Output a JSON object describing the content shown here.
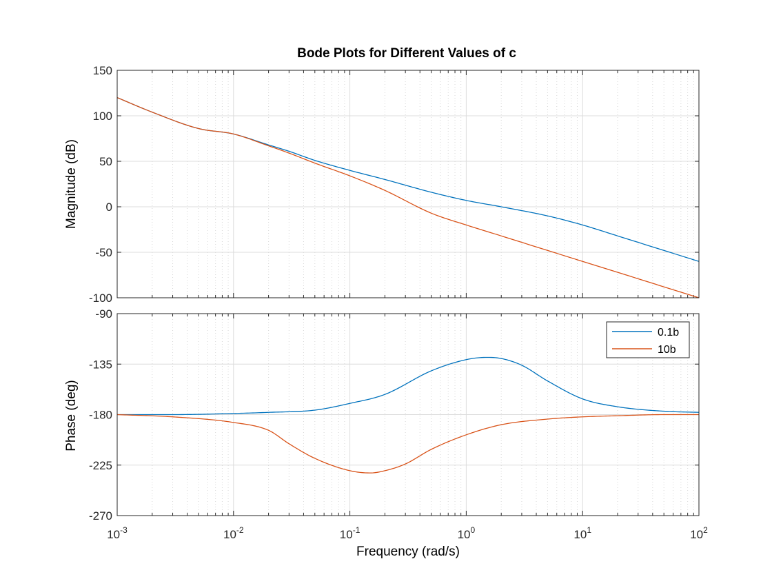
{
  "chart_data": {
    "type": "line",
    "title": "Bode Plots for Different Values of c",
    "xlabel": "Frequency  (rad/s)",
    "xscale": "log",
    "xlim": [
      0.001,
      100
    ],
    "x_tick_labels": [
      {
        "base": "10",
        "exp": "-3"
      },
      {
        "base": "10",
        "exp": "-2"
      },
      {
        "base": "10",
        "exp": "-1"
      },
      {
        "base": "10",
        "exp": "0"
      },
      {
        "base": "10",
        "exp": "1"
      },
      {
        "base": "10",
        "exp": "2"
      }
    ],
    "grid": true,
    "colors": {
      "0.1b": "#0072bd",
      "10b": "#d95319"
    },
    "panels": [
      {
        "ylabel": "Magnitude (dB)",
        "ylim": [
          -100,
          150
        ],
        "yticks": [
          "-100",
          "-50",
          "0",
          "50",
          "100",
          "150"
        ],
        "series": [
          {
            "name": "0.1b",
            "x": [
              0.001,
              0.002,
              0.005,
              0.01,
              0.02,
              0.03,
              0.05,
              0.1,
              0.2,
              0.5,
              1,
              2,
              5,
              10,
              20,
              50,
              100
            ],
            "y": [
              120,
              104,
              86,
              80,
              68,
              61,
              51,
              40,
              30,
              16,
              7,
              0,
              -10,
              -20,
              -32,
              -48,
              -60
            ]
          },
          {
            "name": "10b",
            "x": [
              0.001,
              0.002,
              0.005,
              0.01,
              0.02,
              0.03,
              0.05,
              0.1,
              0.2,
              0.5,
              1,
              2,
              5,
              10,
              20,
              50,
              100
            ],
            "y": [
              120,
              104,
              86,
              80,
              67,
              59,
              48,
              34,
              18,
              -7,
              -20,
              -32,
              -48,
              -60,
              -72,
              -88,
              -100
            ]
          }
        ]
      },
      {
        "ylabel": "Phase (deg)",
        "ylim": [
          -270,
          -90
        ],
        "yticks": [
          "-270",
          "-225",
          "-180",
          "-135",
          "-90"
        ],
        "legend": {
          "entries": [
            "0.1b",
            "10b"
          ],
          "location": "top-right"
        },
        "series": [
          {
            "name": "0.1b",
            "x": [
              0.001,
              0.003,
              0.01,
              0.02,
              0.05,
              0.1,
              0.2,
              0.5,
              1,
              1.5,
              2,
              3,
              5,
              10,
              20,
              50,
              100
            ],
            "y": [
              -180,
              -180,
              -179,
              -178,
              -176,
              -170,
              -162,
              -141,
              -131,
              -129,
              -130,
              -136,
              -150,
              -166,
              -173,
              -177,
              -178
            ]
          },
          {
            "name": "10b",
            "x": [
              0.001,
              0.003,
              0.01,
              0.02,
              0.03,
              0.05,
              0.1,
              0.15,
              0.2,
              0.3,
              0.5,
              1,
              2,
              5,
              10,
              20,
              50,
              100
            ],
            "y": [
              -180,
              -182,
              -187,
              -194,
              -206,
              -219,
              -230,
              -232,
              -230,
              -224,
              -211,
              -198,
              -189,
              -184,
              -182,
              -181,
              -180,
              -180
            ]
          }
        ]
      }
    ]
  }
}
